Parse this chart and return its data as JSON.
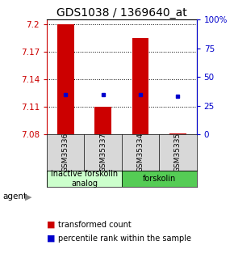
{
  "title": "GDS1038 / 1369640_at",
  "samples": [
    "GSM35336",
    "GSM35337",
    "GSM35334",
    "GSM35335"
  ],
  "bar_bottoms": [
    7.08,
    7.08,
    7.08,
    7.08
  ],
  "bar_tops": [
    7.2,
    7.11,
    7.185,
    7.081
  ],
  "percentile_values": [
    7.123,
    7.123,
    7.123,
    7.122
  ],
  "ylim_left": [
    7.08,
    7.205
  ],
  "yticks_left": [
    7.08,
    7.11,
    7.14,
    7.17,
    7.2
  ],
  "ytick_labels_left": [
    "7.08",
    "7.11",
    "7.14",
    "7.17",
    "7.2"
  ],
  "yticks_right": [
    0,
    25,
    50,
    75,
    100
  ],
  "ytick_labels_right": [
    "0",
    "25",
    "50",
    "75",
    "100%"
  ],
  "bar_color": "#cc0000",
  "dot_color": "#0000cc",
  "groups": [
    {
      "label": "inactive forskolin\nanalog",
      "color": "#ccffcc",
      "samples": [
        0,
        1
      ]
    },
    {
      "label": "forskolin",
      "color": "#55cc55",
      "samples": [
        2,
        3
      ]
    }
  ],
  "agent_label": "agent",
  "legend_bar_label": "transformed count",
  "legend_dot_label": "percentile rank within the sample",
  "background_color": "#ffffff",
  "left_tick_color": "#cc0000",
  "right_tick_color": "#0000cc",
  "title_fontsize": 10,
  "tick_fontsize": 7.5,
  "sample_fontsize": 6.5,
  "group_fontsize": 7,
  "legend_fontsize": 7,
  "bar_width": 0.45
}
